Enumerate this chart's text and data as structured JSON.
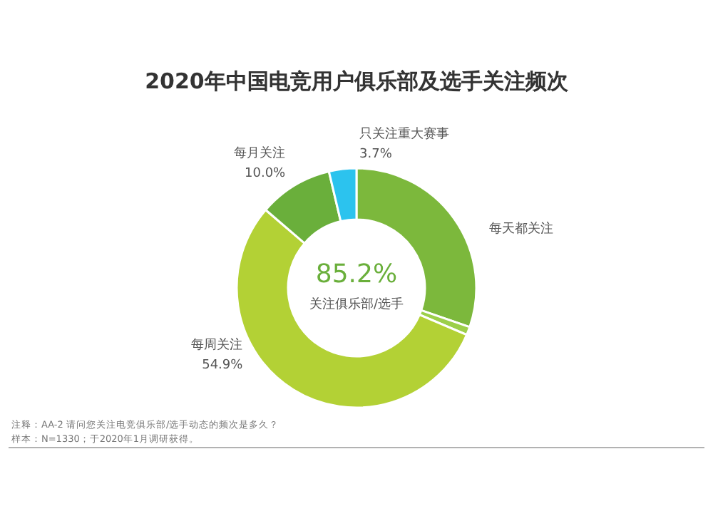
{
  "chart_data": {
    "type": "donut",
    "title": "2020年中国电竞用户俱乐部及选手关注频次",
    "categories": [
      "每天都关注",
      null,
      "每周关注",
      "每月关注",
      "只关注重大赛事"
    ],
    "values": [
      30.3,
      1.1,
      54.9,
      10.0,
      3.7
    ],
    "colors": [
      "#7cb83c",
      "#9ccf4a",
      "#b3d135",
      "#6aaf3b",
      "#2cc3ee"
    ],
    "value_labels": [
      null,
      null,
      "54.9%",
      "10.0%",
      "3.7%"
    ],
    "annotations": [
      "85.2%",
      "关注俱乐部/选手",
      "注释：AA-2 请问您关注电竞俱乐部/选手动态的频次是多久？",
      "样本：N=1330；于2020年1月调研获得。"
    ]
  }
}
